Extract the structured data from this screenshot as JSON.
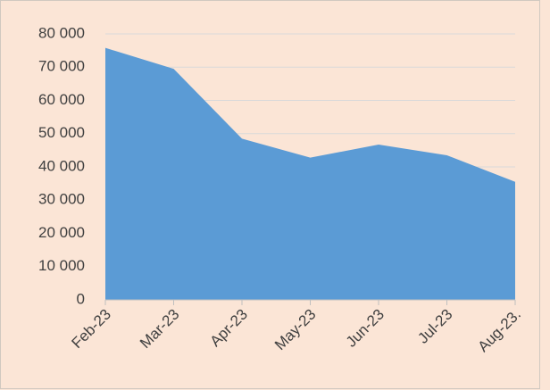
{
  "chart_data": {
    "type": "area",
    "categories": [
      "Feb-23",
      "Mar-23",
      "Apr-23",
      "May-23",
      "Jun-23",
      "Jul-23",
      "Aug-23."
    ],
    "series": [
      {
        "color": "#5b9bd5",
        "values": [
          75800,
          69500,
          48500,
          42800,
          46700,
          43500,
          35500
        ]
      }
    ],
    "ylim": [
      0,
      80000
    ],
    "yticks": [
      0,
      {
        "value": 10000,
        "label": "10 000"
      },
      {
        "value": 20000,
        "label": "20 000"
      },
      {
        "value": 30000,
        "label": "30 000"
      },
      {
        "value": 40000,
        "label": "40 000"
      },
      {
        "value": 50000,
        "label": "50 000"
      },
      {
        "value": 60000,
        "label": "60 000"
      },
      {
        "value": 70000,
        "label": "70 000"
      },
      {
        "value": 80000,
        "label": "80 000"
      }
    ],
    "grid": true
  }
}
